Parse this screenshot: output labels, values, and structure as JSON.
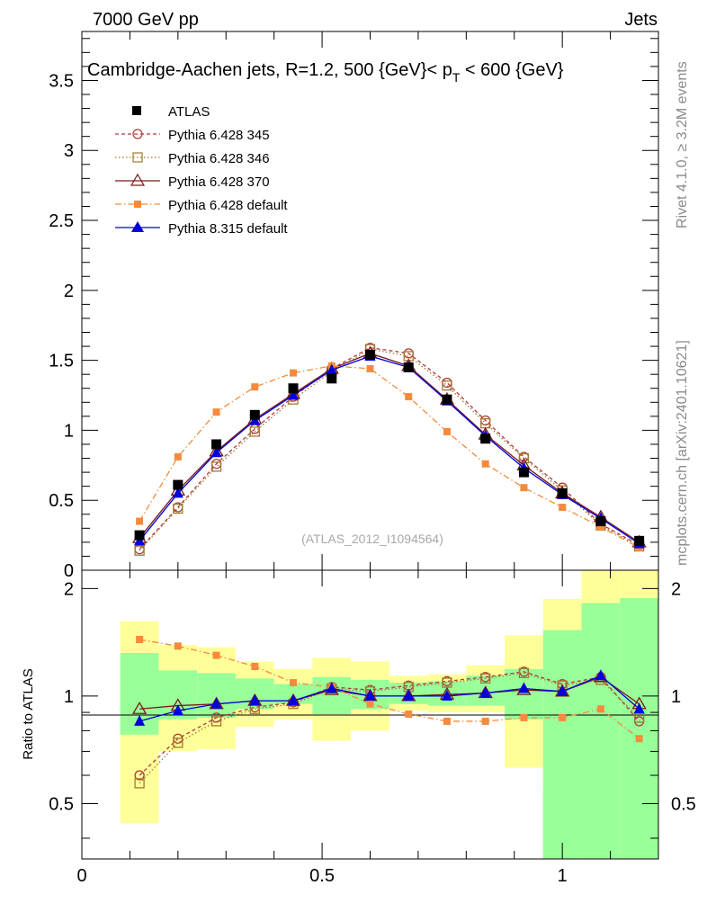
{
  "header": {
    "left": "7000 GeV pp",
    "right": "Jets"
  },
  "plot_title": {
    "main": "Cambridge-Aachen jets, R=1.2,  500 {GeV}< p",
    "sub": "T",
    "tail": " < 600 {GeV}"
  },
  "side": {
    "rivet": "Rivet 4.1.0, ≥ 3.2M events",
    "mcplots": "mcplots.cern.ch [arXiv:2401.10621]"
  },
  "watermark": "(ATLAS_2012_I1094564)",
  "ratio_ylabel": "Ratio to ATLAS",
  "legend": {
    "atlas": "ATLAS",
    "s345": "Pythia 6.428 345",
    "s346": "Pythia 6.428 346",
    "s370": "Pythia 6.428 370",
    "p6def": "Pythia 6.428 default",
    "p8def": "Pythia 8.315 default"
  },
  "chart_data": [
    {
      "type": "line",
      "title": "Cambridge-Aachen jets, R=1.2, 500 {GeV}< p_T < 600 {GeV}",
      "xlim": [
        0,
        1.2
      ],
      "ylim": [
        0,
        3.85
      ],
      "yticks": [
        "0",
        "0.5",
        "1",
        "1.5",
        "2",
        "2.5",
        "3",
        "3.5"
      ],
      "x": [
        0.12,
        0.2,
        0.28,
        0.36,
        0.44,
        0.52,
        0.6,
        0.68,
        0.76,
        0.84,
        0.92,
        1.0,
        1.08,
        1.16
      ],
      "series": [
        {
          "name": "ATLAS",
          "color": "#000000",
          "values": [
            0.25,
            0.61,
            0.9,
            1.11,
            1.3,
            1.37,
            1.54,
            1.45,
            1.22,
            0.94,
            0.7,
            0.55,
            0.35,
            0.21
          ]
        },
        {
          "name": "Pythia 6.428 345",
          "color": "#b03a3a",
          "values": [
            0.15,
            0.45,
            0.76,
            1.01,
            1.24,
            1.44,
            1.59,
            1.55,
            1.34,
            1.07,
            0.81,
            0.59,
            0.33,
            0.18
          ]
        },
        {
          "name": "Pythia 6.428 346",
          "color": "#a07a30",
          "values": [
            0.14,
            0.44,
            0.74,
            0.99,
            1.22,
            1.42,
            1.58,
            1.53,
            1.32,
            1.05,
            0.8,
            0.57,
            0.32,
            0.17
          ]
        },
        {
          "name": "Pythia 6.428 370",
          "color": "#7a1a1a",
          "values": [
            0.23,
            0.57,
            0.85,
            1.08,
            1.26,
            1.44,
            1.55,
            1.46,
            1.22,
            0.97,
            0.75,
            0.55,
            0.38,
            0.2
          ]
        },
        {
          "name": "Pythia 6.428 default",
          "color": "#f58a3c",
          "values": [
            0.35,
            0.81,
            1.13,
            1.31,
            1.41,
            1.46,
            1.44,
            1.24,
            0.99,
            0.76,
            0.59,
            0.45,
            0.31,
            0.16
          ]
        },
        {
          "name": "Pythia 8.315 default",
          "color": "#0000dd",
          "values": [
            0.21,
            0.55,
            0.84,
            1.07,
            1.25,
            1.43,
            1.53,
            1.45,
            1.21,
            0.96,
            0.73,
            0.54,
            0.37,
            0.19
          ]
        }
      ]
    },
    {
      "type": "line",
      "title": "Ratio to ATLAS",
      "ylabel": "Ratio to ATLAS",
      "xlim": [
        0,
        1.2
      ],
      "ylim": [
        0.35,
        2.25
      ],
      "xticks": [
        "0",
        "0.5",
        "1"
      ],
      "yticks": [
        "0.5",
        "1",
        "2"
      ],
      "x": [
        0.12,
        0.2,
        0.28,
        0.36,
        0.44,
        0.52,
        0.6,
        0.68,
        0.76,
        0.84,
        0.92,
        1.0,
        1.08,
        1.16
      ],
      "bins": [
        0.08,
        0.16,
        0.24,
        0.32,
        0.4,
        0.48,
        0.56,
        0.64,
        0.72,
        0.8,
        0.88,
        0.96,
        1.04,
        1.12,
        1.2
      ],
      "band_inner": [
        [
          0.78,
          1.32
        ],
        [
          0.86,
          1.18
        ],
        [
          0.87,
          1.16
        ],
        [
          0.92,
          1.12
        ],
        [
          0.95,
          1.08
        ],
        [
          0.89,
          1.13
        ],
        [
          0.92,
          1.11
        ],
        [
          0.95,
          1.09
        ],
        [
          0.94,
          1.1
        ],
        [
          0.94,
          1.14
        ],
        [
          0.86,
          1.19
        ],
        [
          0.35,
          1.53
        ],
        [
          0.35,
          1.82
        ],
        [
          0.35,
          1.88
        ]
      ],
      "band_outer": [
        [
          0.44,
          1.62
        ],
        [
          0.7,
          1.39
        ],
        [
          0.71,
          1.37
        ],
        [
          0.82,
          1.25
        ],
        [
          0.86,
          1.19
        ],
        [
          0.75,
          1.28
        ],
        [
          0.8,
          1.25
        ],
        [
          0.91,
          1.14
        ],
        [
          0.9,
          1.15
        ],
        [
          0.9,
          1.22
        ],
        [
          0.63,
          1.48
        ],
        [
          0.35,
          1.87
        ],
        [
          0.35,
          2.25
        ],
        [
          0.35,
          2.25
        ]
      ],
      "outer_gaps": [
        [
          0.96,
          1.04,
          0.55
        ]
      ],
      "series": [
        {
          "name": "Pythia 6.428 345",
          "values": [
            0.6,
            0.76,
            0.87,
            0.93,
            0.96,
            1.06,
            1.04,
            1.07,
            1.1,
            1.13,
            1.17,
            1.08,
            1.13,
            0.85
          ]
        },
        {
          "name": "Pythia 6.428 346",
          "values": [
            0.57,
            0.74,
            0.85,
            0.92,
            0.95,
            1.05,
            1.03,
            1.06,
            1.09,
            1.12,
            1.16,
            1.07,
            1.11,
            0.87
          ]
        },
        {
          "name": "Pythia 6.428 370",
          "values": [
            0.92,
            0.94,
            0.95,
            0.97,
            0.97,
            1.04,
            1.0,
            1.0,
            1.01,
            1.02,
            1.04,
            1.03,
            1.13,
            0.95
          ]
        },
        {
          "name": "Pythia 6.428 default",
          "values": [
            1.44,
            1.38,
            1.3,
            1.21,
            1.09,
            1.06,
            0.95,
            0.89,
            0.85,
            0.85,
            0.87,
            0.87,
            0.92,
            0.76
          ]
        },
        {
          "name": "Pythia 8.315 default",
          "values": [
            0.85,
            0.91,
            0.95,
            0.97,
            0.97,
            1.05,
            1.0,
            1.0,
            1.0,
            1.02,
            1.05,
            1.03,
            1.14,
            0.92
          ]
        }
      ]
    }
  ]
}
